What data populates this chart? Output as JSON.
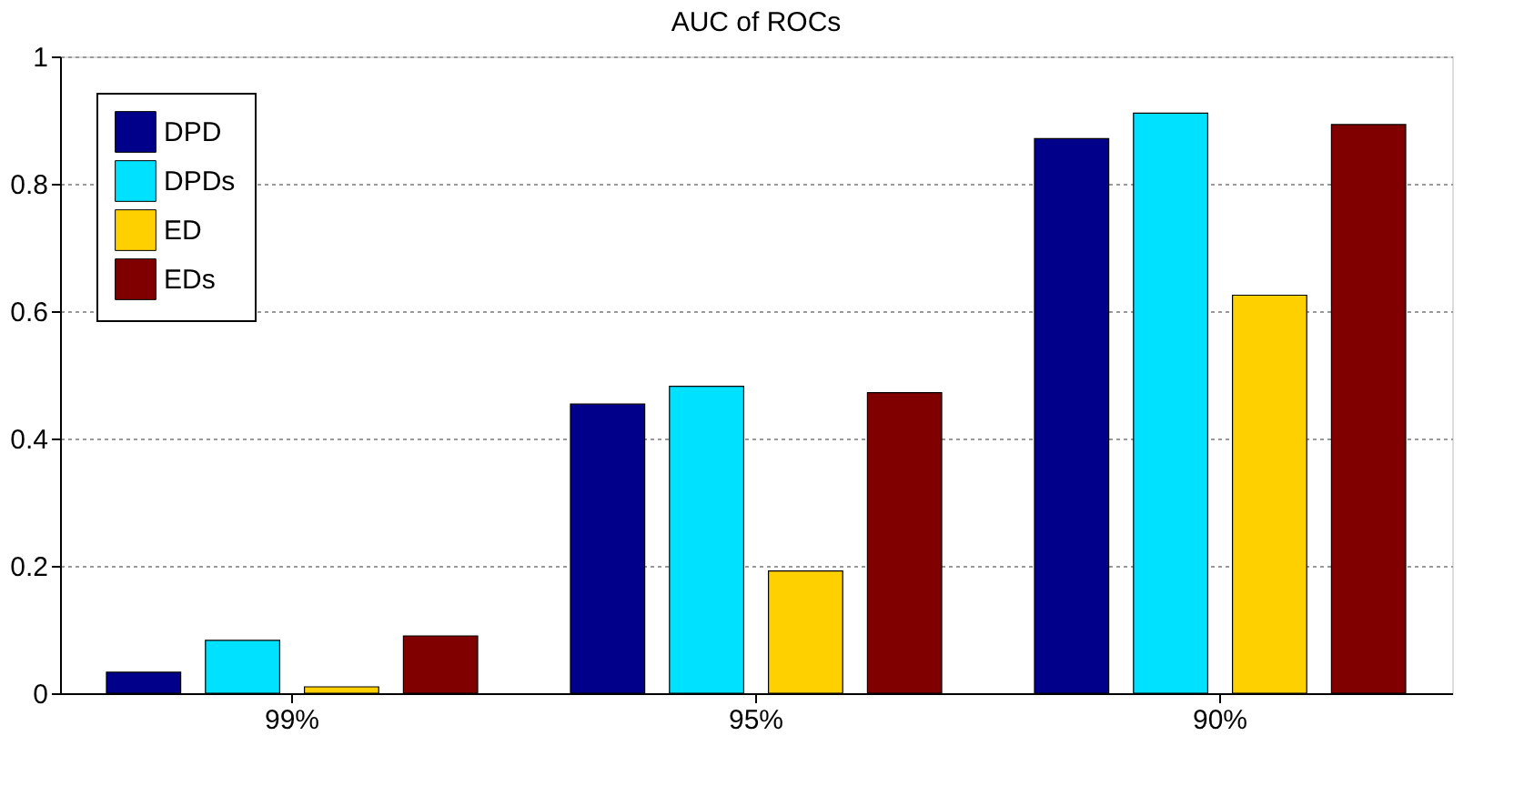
{
  "chart_data": {
    "type": "bar",
    "title": "AUC of ROCs",
    "categories": [
      "99%",
      "95%",
      "90%"
    ],
    "series": [
      {
        "name": "DPD",
        "color": "#00008b",
        "values": [
          0.033,
          0.454,
          0.871
        ]
      },
      {
        "name": "DPDs",
        "color": "#00e0ff",
        "values": [
          0.083,
          0.482,
          0.911
        ]
      },
      {
        "name": "ED",
        "color": "#ffd000",
        "values": [
          0.01,
          0.192,
          0.625
        ]
      },
      {
        "name": "EDs",
        "color": "#800000",
        "values": [
          0.09,
          0.472,
          0.893
        ]
      }
    ],
    "ylim": [
      0,
      1
    ],
    "yticks": [
      0,
      0.2,
      0.4,
      0.6,
      0.8,
      1
    ],
    "grid": "y",
    "legend": "top left"
  }
}
